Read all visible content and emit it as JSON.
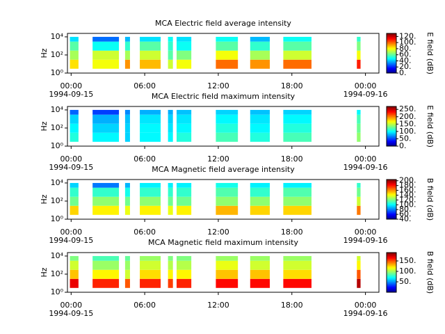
{
  "chart_data": [
    {
      "type": "heatmap",
      "title": "MCA  Electric field average intensity",
      "ylabel": "Hz",
      "colorbar_label": "E field (dB)",
      "colormap": "jet",
      "log_y": true,
      "xlim": [
        -0.3,
        25.1
      ],
      "xticks": [
        {
          "value": 0,
          "label": "00:00",
          "date": "1994-09-15"
        },
        {
          "value": 6,
          "label": "06:00"
        },
        {
          "value": 12,
          "label": "12:00"
        },
        {
          "value": 18,
          "label": "18:00"
        },
        {
          "value": 24,
          "label": "00:00",
          "date": "1994-09-16"
        }
      ],
      "ylim": [
        1,
        24000
      ],
      "yticks": [
        {
          "value": 1,
          "label": "10⁰"
        },
        {
          "value": 100,
          "label": "10²"
        },
        {
          "value": 10000,
          "label": "10⁴"
        }
      ],
      "zlim": [
        0,
        130
      ],
      "zticks": [
        {
          "value": 0,
          "label": "0."
        },
        {
          "value": 20,
          "label": "20."
        },
        {
          "value": 40,
          "label": "40."
        },
        {
          "value": 60,
          "label": "60."
        },
        {
          "value": 80,
          "label": "80."
        },
        {
          "value": 100,
          "label": "100."
        },
        {
          "value": 120,
          "label": "120."
        }
      ],
      "segments": [
        [
          -0.1,
          0.6
        ],
        [
          1.75,
          3.9
        ],
        [
          4.4,
          4.8
        ],
        [
          5.6,
          7.3
        ],
        [
          7.9,
          8.3
        ],
        [
          8.6,
          9.8
        ],
        [
          11.8,
          13.6
        ],
        [
          14.6,
          16.2
        ],
        [
          17.3,
          19.6
        ],
        [
          23.3,
          23.6
        ]
      ],
      "y_edges": [
        3,
        30,
        300,
        3000,
        10000
      ],
      "z": [
        [
          85,
          80,
          95,
          90,
          75,
          80,
          100,
          95,
          100,
          110
        ],
        [
          70,
          75,
          70,
          75,
          60,
          65,
          80,
          70,
          75,
          80
        ],
        [
          60,
          50,
          55,
          60,
          55,
          50,
          60,
          55,
          60,
          65
        ],
        [
          45,
          30,
          40,
          45,
          50,
          45,
          50,
          40,
          50,
          55
        ]
      ]
    },
    {
      "type": "heatmap",
      "title": "MCA  Electric field maximum intensity",
      "ylabel": "Hz",
      "colorbar_label": "E field (dB)",
      "colormap": "jet",
      "log_y": true,
      "xlim": [
        -0.3,
        25.1
      ],
      "xticks": [
        {
          "value": 0,
          "label": "00:00",
          "date": "1994-09-15"
        },
        {
          "value": 6,
          "label": "06:00"
        },
        {
          "value": 12,
          "label": "12:00"
        },
        {
          "value": 18,
          "label": "18:00"
        },
        {
          "value": 24,
          "label": "00:00",
          "date": "1994-09-16"
        }
      ],
      "ylim": [
        1,
        24000
      ],
      "yticks": [
        {
          "value": 1,
          "label": "10⁰"
        },
        {
          "value": 100,
          "label": "10²"
        },
        {
          "value": 10000,
          "label": "10⁴"
        }
      ],
      "zlim": [
        0,
        270
      ],
      "zticks": [
        {
          "value": 0,
          "label": "0."
        },
        {
          "value": 50,
          "label": "50."
        },
        {
          "value": 100,
          "label": "100."
        },
        {
          "value": 150,
          "label": "150."
        },
        {
          "value": 200,
          "label": "200."
        },
        {
          "value": 250,
          "label": "250."
        }
      ],
      "segments": [
        [
          -0.1,
          0.6
        ],
        [
          1.75,
          3.9
        ],
        [
          4.4,
          4.8
        ],
        [
          5.6,
          7.3
        ],
        [
          7.9,
          8.3
        ],
        [
          8.6,
          9.8
        ],
        [
          11.8,
          13.6
        ],
        [
          14.6,
          16.2
        ],
        [
          17.3,
          19.6
        ],
        [
          23.3,
          23.6
        ]
      ],
      "y_edges": [
        3,
        30,
        300,
        3000,
        10000
      ],
      "z": [
        [
          110,
          100,
          90,
          100,
          100,
          110,
          120,
          110,
          120,
          140
        ],
        [
          100,
          90,
          90,
          100,
          95,
          100,
          110,
          100,
          110,
          130
        ],
        [
          90,
          80,
          85,
          95,
          90,
          95,
          100,
          95,
          100,
          120
        ],
        [
          60,
          50,
          70,
          80,
          80,
          85,
          90,
          85,
          90,
          100
        ]
      ]
    },
    {
      "type": "heatmap",
      "title": "MCA  Magnetic field average intensity",
      "ylabel": "Hz",
      "colorbar_label": "B field (dB)",
      "colormap": "jet",
      "log_y": true,
      "xlim": [
        -0.3,
        25.1
      ],
      "xticks": [
        {
          "value": 0,
          "label": "00:00",
          "date": "1994-09-15"
        },
        {
          "value": 6,
          "label": "06:00"
        },
        {
          "value": 12,
          "label": "12:00"
        },
        {
          "value": 18,
          "label": "18:00"
        },
        {
          "value": 24,
          "label": "00:00",
          "date": "1994-09-16"
        }
      ],
      "ylim": [
        1,
        24000
      ],
      "yticks": [
        {
          "value": 1,
          "label": "10⁰"
        },
        {
          "value": 100,
          "label": "10²"
        },
        {
          "value": 10000,
          "label": "10⁴"
        }
      ],
      "zlim": [
        40,
        205
      ],
      "zticks": [
        {
          "value": 40,
          "label": "40."
        },
        {
          "value": 60,
          "label": "60."
        },
        {
          "value": 80,
          "label": "80."
        },
        {
          "value": 100,
          "label": "100."
        },
        {
          "value": 120,
          "label": "120."
        },
        {
          "value": 140,
          "label": "140."
        },
        {
          "value": 160,
          "label": "160."
        },
        {
          "value": 180,
          "label": "180."
        },
        {
          "value": 200,
          "label": "200."
        }
      ],
      "segments": [
        [
          -0.1,
          0.6
        ],
        [
          1.75,
          3.9
        ],
        [
          4.4,
          4.8
        ],
        [
          5.6,
          7.3
        ],
        [
          7.9,
          8.3
        ],
        [
          8.6,
          9.8
        ],
        [
          11.8,
          13.6
        ],
        [
          14.6,
          16.2
        ],
        [
          17.3,
          19.6
        ],
        [
          23.3,
          23.6
        ]
      ],
      "y_edges": [
        3,
        30,
        300,
        3000,
        10000
      ],
      "z": [
        [
          150,
          145,
          140,
          145,
          140,
          145,
          155,
          150,
          150,
          165
        ],
        [
          120,
          125,
          120,
          125,
          120,
          120,
          125,
          125,
          125,
          135
        ],
        [
          110,
          110,
          105,
          110,
          110,
          110,
          115,
          110,
          115,
          120
        ],
        [
          95,
          80,
          90,
          100,
          100,
          100,
          105,
          100,
          100,
          110
        ]
      ]
    },
    {
      "type": "heatmap",
      "title": "MCA  Magnetic field maximum intensity",
      "ylabel": "Hz",
      "colorbar_label": "B field (dB)",
      "colormap": "jet",
      "log_y": true,
      "xlim": [
        -0.3,
        25.1
      ],
      "xticks": [
        {
          "value": 0,
          "label": "00:00",
          "date": "1994-09-15"
        },
        {
          "value": 6,
          "label": "06:00"
        },
        {
          "value": 12,
          "label": "12:00"
        },
        {
          "value": 18,
          "label": "18:00"
        },
        {
          "value": 24,
          "label": "00:00",
          "date": "1994-09-16"
        }
      ],
      "ylim": [
        1,
        24000
      ],
      "yticks": [
        {
          "value": 1,
          "label": "10⁰"
        },
        {
          "value": 100,
          "label": "10²"
        },
        {
          "value": 10000,
          "label": "10⁴"
        }
      ],
      "zlim": [
        0,
        190
      ],
      "zticks": [
        {
          "value": 50,
          "label": "50."
        },
        {
          "value": 100,
          "label": "100."
        },
        {
          "value": 150,
          "label": "150."
        }
      ],
      "segments": [
        [
          -0.1,
          0.6
        ],
        [
          1.75,
          3.9
        ],
        [
          4.4,
          4.8
        ],
        [
          5.6,
          7.3
        ],
        [
          7.9,
          8.3
        ],
        [
          8.6,
          9.8
        ],
        [
          11.8,
          13.6
        ],
        [
          14.6,
          16.2
        ],
        [
          17.3,
          19.6
        ],
        [
          23.3,
          23.6
        ]
      ],
      "y_edges": [
        3,
        30,
        300,
        3000,
        10000
      ],
      "z": [
        [
          170,
          160,
          150,
          160,
          155,
          160,
          165,
          165,
          165,
          180
        ],
        [
          130,
          120,
          110,
          125,
          120,
          120,
          130,
          130,
          125,
          150
        ],
        [
          110,
          100,
          100,
          110,
          105,
          105,
          115,
          110,
          110,
          120
        ],
        [
          95,
          85,
          90,
          100,
          95,
          95,
          100,
          100,
          100,
          110
        ]
      ]
    }
  ]
}
